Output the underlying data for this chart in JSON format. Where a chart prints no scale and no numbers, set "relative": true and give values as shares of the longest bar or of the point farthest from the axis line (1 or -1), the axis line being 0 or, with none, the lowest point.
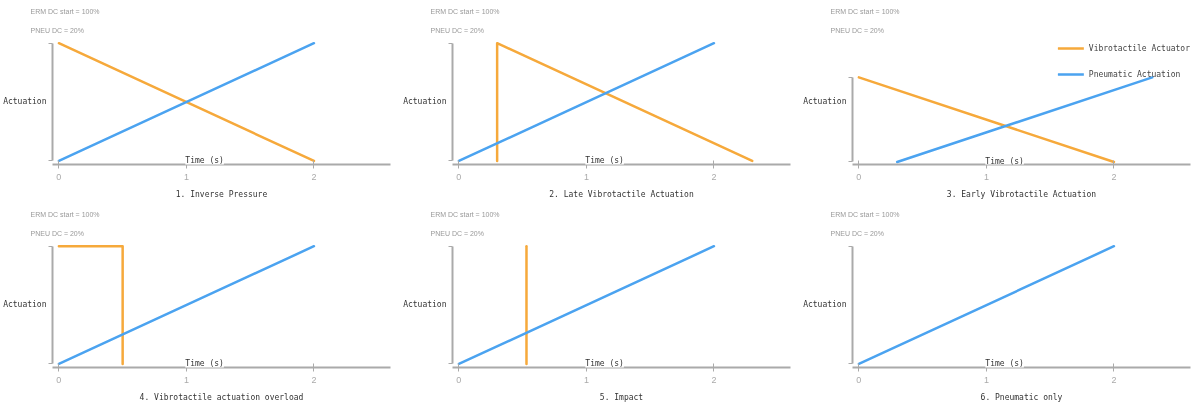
{
  "chart_data": [
    {
      "type": "line",
      "title": "1. Inverse Pressure",
      "xlabel": "Time (s)",
      "ylabel": "Actuation",
      "annotations": [
        "ERM DC start = 100%",
        "PNEU DC  = 20%"
      ],
      "relative": true,
      "xlim": [
        -0.05,
        2.6
      ],
      "xticks": [
        0,
        1,
        2
      ],
      "tick_labels": "x",
      "grid": false,
      "legend": false,
      "series": [
        {
          "color": "#f6a93b",
          "x": [
            0,
            2
          ],
          "values": [
            1,
            0
          ]
        },
        {
          "color": "#4ba3f0",
          "x": [
            0,
            2
          ],
          "values": [
            0,
            1
          ]
        }
      ]
    },
    {
      "type": "line",
      "title": "2. Late Vibrotactile Actuation",
      "xlabel": "Time (s)",
      "ylabel": "Actuation",
      "annotations": [
        "ERM DC start = 100%",
        "PNEU DC  = 20%"
      ],
      "relative": true,
      "xlim": [
        -0.05,
        2.6
      ],
      "xticks": [
        0,
        1,
        2
      ],
      "tick_labels": "x",
      "grid": false,
      "legend": false,
      "series": [
        {
          "color": "#f6a93b",
          "x": [
            0.3,
            0.3,
            2.3
          ],
          "values": [
            0,
            1,
            0
          ]
        },
        {
          "color": "#4ba3f0",
          "x": [
            0,
            2
          ],
          "values": [
            0,
            1
          ]
        }
      ]
    },
    {
      "type": "line",
      "title": "3. Early Vibrotactile Actuation",
      "xlabel": "Time (s)",
      "ylabel": "Actuation",
      "annotations": [
        "ERM DC start = 100%",
        "PNEU DC  = 20%"
      ],
      "relative": true,
      "xlim": [
        -0.05,
        2.6
      ],
      "xticks": [
        0,
        1,
        2
      ],
      "tick_labels": "x",
      "grid": false,
      "legend": "right",
      "series": [
        {
          "name": "Vibrotactile Actuator",
          "color": "#f6a93b",
          "x": [
            0,
            2
          ],
          "values": [
            1,
            0
          ]
        },
        {
          "name": "Pneumatic Actuation",
          "color": "#4ba3f0",
          "x": [
            0.3,
            2.3
          ],
          "values": [
            0,
            1
          ]
        }
      ]
    },
    {
      "type": "line",
      "title": "4. Vibrotactile actuation overload",
      "xlabel": "Time (s)",
      "ylabel": "Actuation",
      "annotations": [
        "ERM DC start = 100%",
        "PNEU DC  = 20%"
      ],
      "relative": true,
      "xlim": [
        -0.05,
        2.6
      ],
      "xticks": [
        0,
        1,
        2
      ],
      "tick_labels": "x",
      "grid": false,
      "legend": false,
      "series": [
        {
          "color": "#f6a93b",
          "x": [
            0,
            0.5,
            0.5
          ],
          "values": [
            1,
            1,
            0
          ]
        },
        {
          "color": "#4ba3f0",
          "x": [
            0,
            2
          ],
          "values": [
            0,
            1
          ]
        }
      ]
    },
    {
      "type": "line",
      "title": "5. Impact",
      "xlabel": "Time (s)",
      "ylabel": "Actuation",
      "annotations": [
        "ERM DC start = 100%",
        "PNEU DC  = 20%"
      ],
      "relative": true,
      "xlim": [
        -0.05,
        2.6
      ],
      "xticks": [
        0,
        1,
        2
      ],
      "tick_labels": "x",
      "grid": false,
      "legend": false,
      "series": [
        {
          "color": "#f6a93b",
          "x": [
            0.53,
            0.53
          ],
          "values": [
            0,
            1
          ]
        },
        {
          "color": "#4ba3f0",
          "x": [
            0,
            2
          ],
          "values": [
            0,
            1
          ]
        }
      ]
    },
    {
      "type": "line",
      "title": "6. Pneumatic only",
      "xlabel": "Time (s)",
      "ylabel": "Actuation",
      "annotations": [
        "ERM DC start = 100%",
        "PNEU DC  = 20%"
      ],
      "relative": true,
      "xlim": [
        -0.05,
        2.6
      ],
      "xticks": [
        0,
        1,
        2
      ],
      "tick_labels": "x",
      "grid": false,
      "legend": false,
      "series": [
        {
          "color": "#4ba3f0",
          "x": [
            0,
            2
          ],
          "values": [
            0,
            1
          ]
        }
      ]
    }
  ]
}
